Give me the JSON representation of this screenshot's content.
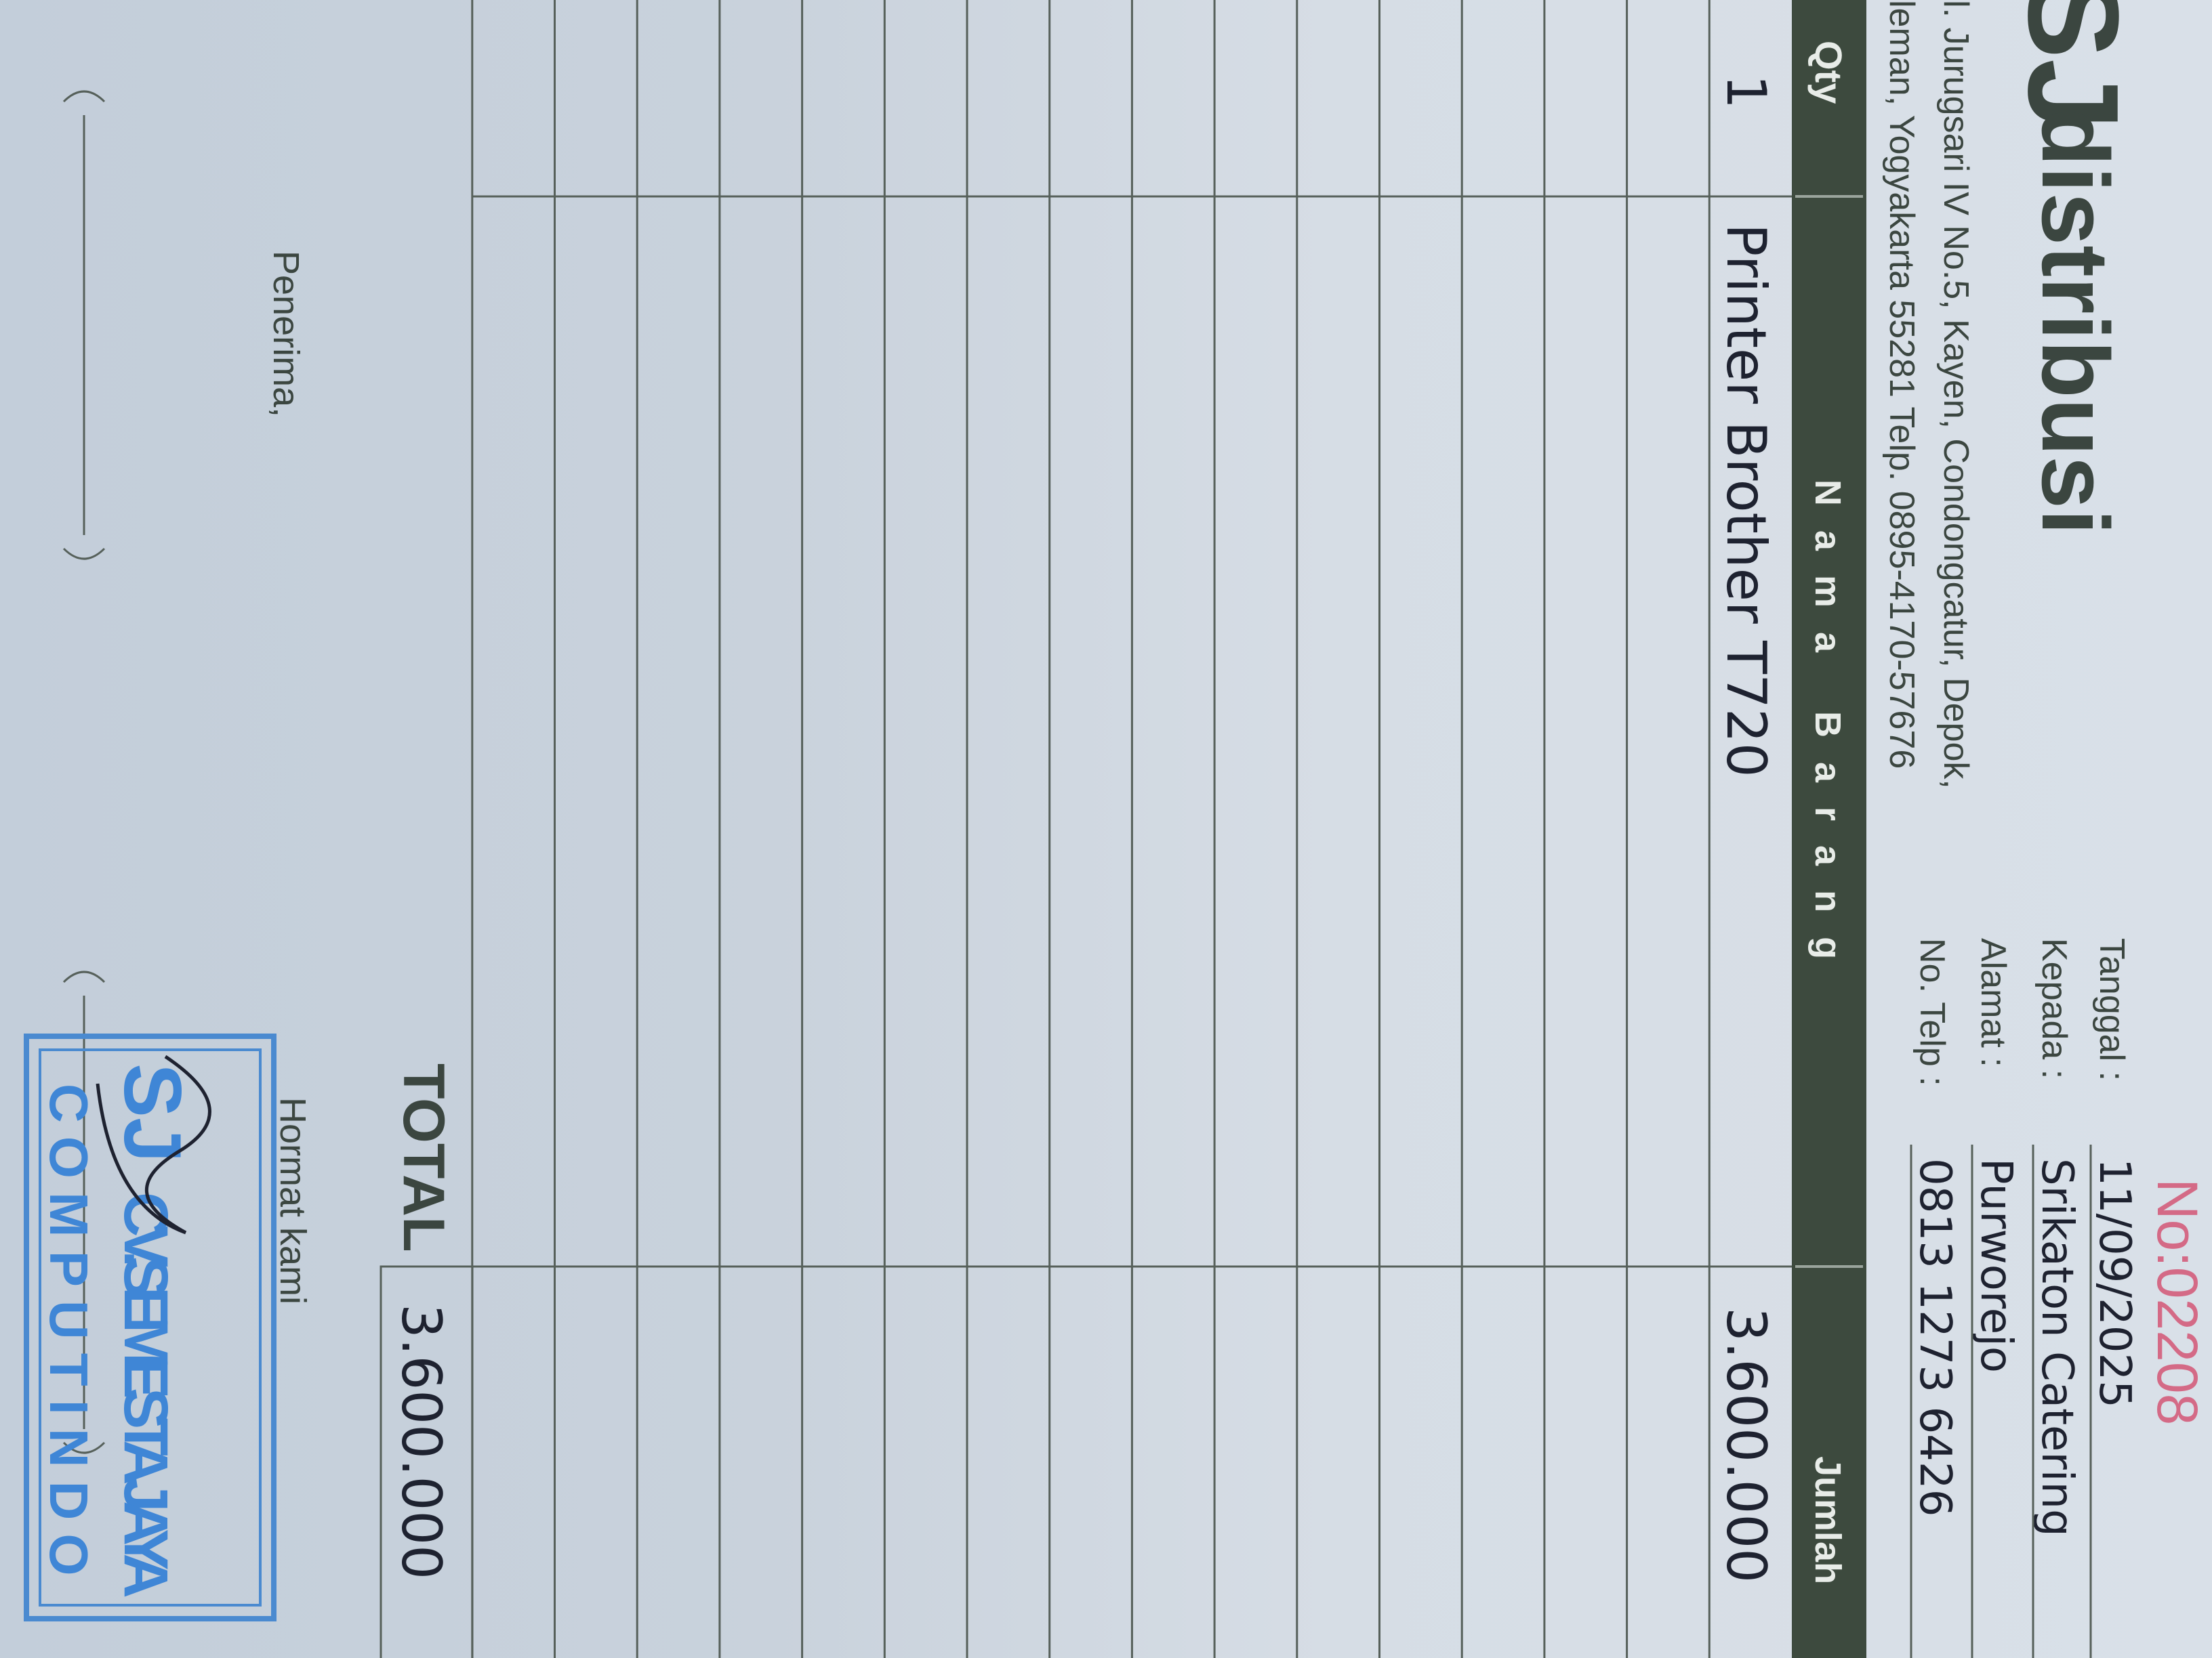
{
  "header": {
    "logo": "SJ",
    "brand": "distribusi",
    "address": [
      "l. Jurugsari IV No.5, Kayen, Condongcatur, Depok,",
      "leman, Yogyakarta 55281 Telp. 0895-4170-57676"
    ],
    "number": "No:02208"
  },
  "fields": [
    {
      "label": "Tanggal :",
      "value": "11/09/2025"
    },
    {
      "label": "Kepada :",
      "value": "Srikaton Catering"
    },
    {
      "label": "Alamat :",
      "value": "Purworejo"
    },
    {
      "label": "No. Telp :",
      "value": "0813 1273 6426"
    }
  ],
  "table": {
    "columns": [
      "Qty",
      "Nama Barang",
      "Jumlah"
    ],
    "rows": [
      [
        "1",
        "Printer Brother T720",
        "3.600.000"
      ]
    ],
    "total_label": "TOTAL",
    "total": "3.600.000"
  },
  "footer": {
    "receiver": "Penerima,",
    "sender": "Hormat kami",
    "stamp": {
      "logo": "SJ",
      "name": "CV.SEMESTA JAYA",
      "sub": "COMPUTINDO"
    }
  }
}
